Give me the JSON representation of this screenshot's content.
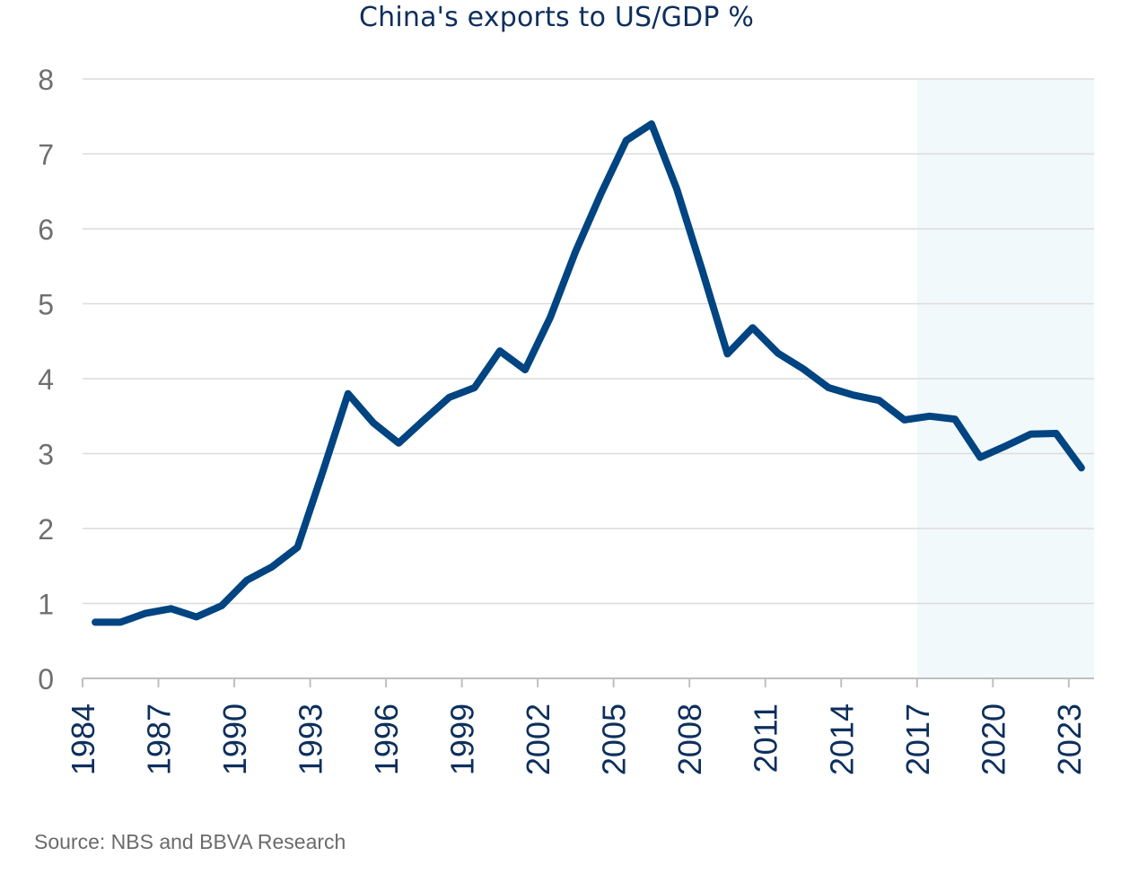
{
  "chart_data": {
    "type": "line",
    "title": "China's exports to US/GDP %",
    "source": "Source: NBS and BBVA Research",
    "xlabel": "",
    "ylabel": "",
    "ylim": [
      0,
      8
    ],
    "yticks": [
      "0",
      "1",
      "2",
      "3",
      "4",
      "5",
      "6",
      "7",
      "8"
    ],
    "xlim": [
      1984,
      2024
    ],
    "xticks": [
      "1984",
      "1987",
      "1990",
      "1993",
      "1996",
      "1999",
      "2002",
      "2005",
      "2008",
      "2011",
      "2014",
      "2017",
      "2020",
      "2023"
    ],
    "grid": "horizontal",
    "highlight_region": {
      "x": [
        2017,
        2024
      ],
      "color": "#f1f9fa"
    },
    "line_color": "#004481",
    "series": [
      {
        "x": [
          1984.5,
          1985.5,
          1986.5,
          1987.5,
          1988.5,
          1989.5,
          1990.5,
          1991.5,
          1992.5,
          1993.5,
          1994.5,
          1995.5,
          1996.5,
          1997.5,
          1998.5,
          1999.5,
          2000.5,
          2001.5,
          2002.5,
          2003.5,
          2004.5,
          2005.5,
          2006.5,
          2007.5,
          2008.5,
          2009.5,
          2010.5,
          2011.5,
          2012.5,
          2013.5,
          2014.5,
          2015.5,
          2016.5,
          2017.5,
          2018.5,
          2019.5,
          2020.5,
          2021.5,
          2022.5,
          2023.5
        ],
        "values": [
          0.75,
          0.75,
          0.87,
          0.93,
          0.82,
          0.97,
          1.31,
          1.49,
          1.75,
          2.76,
          3.8,
          3.41,
          3.14,
          3.45,
          3.75,
          3.88,
          4.37,
          4.12,
          4.82,
          5.7,
          6.47,
          7.18,
          7.4,
          6.53,
          5.45,
          4.33,
          4.68,
          4.34,
          4.13,
          3.88,
          3.78,
          3.71,
          3.45,
          3.5,
          3.46,
          2.95,
          3.1,
          3.26,
          3.27,
          2.81
        ]
      }
    ]
  }
}
